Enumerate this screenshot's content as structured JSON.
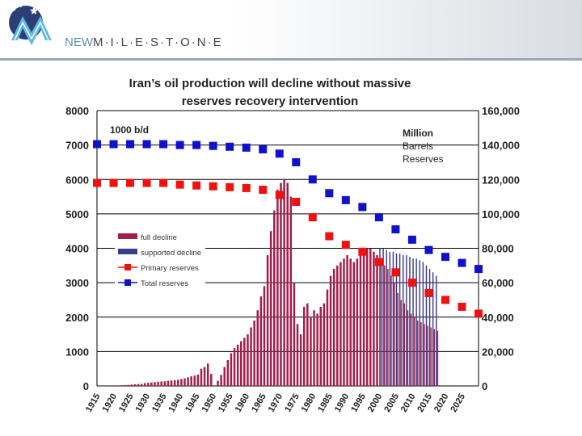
{
  "header": {
    "brand_prefix": "NEW",
    "brand_name": "MILESTONE",
    "brand_display": "M·I·L·E·S·T·O·N·E"
  },
  "chart_data": {
    "type": "bar",
    "title_line1": "Iran’s oil production will decline without massive",
    "title_line2": "reserves recovery intervention",
    "left_unit": "1000 b/d",
    "right_unit": [
      "Million",
      "Barrels",
      "Reserves"
    ],
    "left_axis": {
      "range": [
        0,
        8000
      ],
      "ticks": [
        "0",
        "1000",
        "2000",
        "3000",
        "4000",
        "5000",
        "6000",
        "7000",
        "8000"
      ]
    },
    "right_axis": {
      "range": [
        0,
        160000
      ],
      "ticks": [
        "0",
        "20,000",
        "40,000",
        "60,000",
        "80,000",
        "100,000",
        "120,000",
        "140,000",
        "160,000"
      ]
    },
    "x_ticks": [
      "1915",
      "1920",
      "1925",
      "1930",
      "1935",
      "1940",
      "1945",
      "1950",
      "1955",
      "1960",
      "1965",
      "1970",
      "1975",
      "1980",
      "1985",
      "1990",
      "1995",
      "2000",
      "2005",
      "2010",
      "2015",
      "2020",
      "2025"
    ],
    "legend": [
      "full decline",
      "supported decline",
      "Primary reserves",
      "Total reserves"
    ],
    "colors": {
      "full": "#a0204a",
      "supported": "#3c3c8c",
      "primary": "#ee1111",
      "total": "#1111cc"
    },
    "years_start": 1915,
    "production": [
      0,
      0,
      0,
      0,
      0,
      0,
      0,
      20,
      25,
      30,
      40,
      50,
      55,
      60,
      80,
      90,
      100,
      110,
      120,
      130,
      135,
      150,
      160,
      170,
      180,
      200,
      220,
      250,
      280,
      300,
      330,
      500,
      550,
      650,
      350,
      0,
      150,
      320,
      550,
      750,
      950,
      1100,
      1200,
      1300,
      1400,
      1500,
      1700,
      1900,
      2200,
      2600,
      2900,
      3800,
      4500,
      5100,
      5700,
      5900,
      6000,
      5900,
      5500,
      3000,
      1800,
      1500,
      2300,
      2400,
      2000,
      2200,
      2100,
      2300,
      2400,
      2800,
      3200,
      3400,
      3500,
      3600,
      3700,
      3800,
      3700,
      3600,
      3700,
      3800,
      3900,
      4000,
      4000,
      3900,
      3800
    ],
    "full_decline": [
      3650,
      3500,
      3400,
      3200,
      3000,
      2700,
      2500,
      2400,
      2200,
      2100,
      2000,
      1900,
      1850,
      1800,
      1750,
      1700,
      1650,
      1600
    ],
    "supported_decline": [
      4000,
      4000,
      3950,
      3900,
      3900,
      3850,
      3850,
      3800,
      3800,
      3750,
      3700,
      3700,
      3650,
      3600,
      3500,
      3400,
      3300,
      3200
    ],
    "primary_years": [
      1915,
      1920,
      1925,
      1930,
      1935,
      1940,
      1945,
      1950,
      1955,
      1960,
      1965,
      1970,
      1975,
      1980,
      1985,
      1990,
      1995,
      2000,
      2005,
      2010,
      2015,
      2020,
      2025,
      2030
    ],
    "primary_reserves": [
      118000,
      118000,
      118000,
      118000,
      118000,
      117000,
      116500,
      116000,
      115500,
      115000,
      114000,
      111000,
      107000,
      98000,
      87000,
      82000,
      78000,
      72000,
      66000,
      60000,
      54000,
      50000,
      46000,
      42000
    ],
    "total_years": [
      1915,
      1920,
      1925,
      1930,
      1935,
      1940,
      1945,
      1950,
      1955,
      1960,
      1965,
      1970,
      1975,
      1980,
      1985,
      1990,
      1995,
      2000,
      2005,
      2010,
      2015,
      2020,
      2025,
      2030
    ],
    "total_reserves": [
      140500,
      140500,
      140500,
      140500,
      140500,
      140000,
      140000,
      139500,
      139000,
      138500,
      137500,
      135000,
      130000,
      120000,
      112000,
      108000,
      104000,
      98000,
      91000,
      85000,
      79000,
      75000,
      71500,
      68000
    ]
  }
}
